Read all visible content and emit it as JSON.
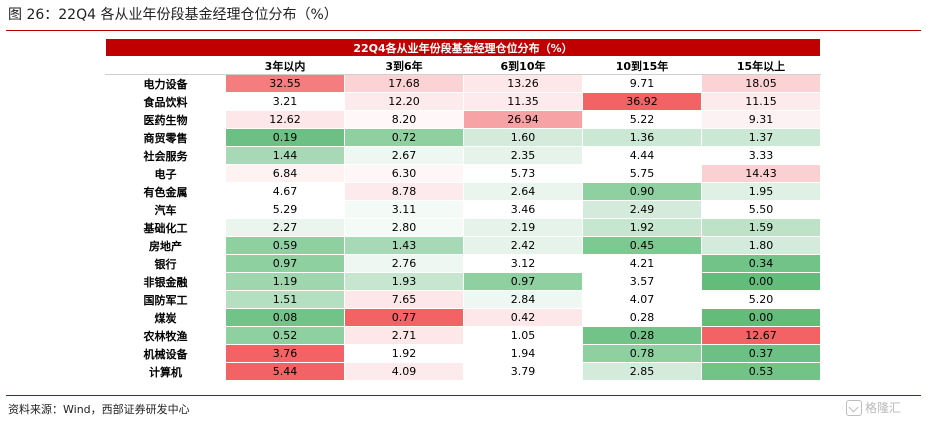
{
  "figure": {
    "title": "图 26：22Q4 各从业年份段基金经理仓位分布（%）",
    "source": "资料来源：Wind，西部证券研发中心",
    "watermark": "格隆汇"
  },
  "table": {
    "title": "22Q4各从业年份段基金经理仓位分布（%）",
    "columns": [
      "3年以内",
      "3到6年",
      "6到10年",
      "10到15年",
      "15年以上"
    ],
    "rows": [
      {
        "label": "电力设备",
        "values": [
          "32.55",
          "17.68",
          "13.26",
          "9.71",
          "18.05"
        ],
        "colors": [
          "#f57d7f",
          "#fbd3d5",
          "#fde7e9",
          "#ffffff",
          "#fbd3d5"
        ]
      },
      {
        "label": "食品饮料",
        "values": [
          "3.21",
          "12.20",
          "11.35",
          "36.92",
          "11.15"
        ],
        "colors": [
          "#ffffff",
          "#fdeaec",
          "#fdeaec",
          "#f36366",
          "#fdeaec"
        ]
      },
      {
        "label": "医药生物",
        "values": [
          "12.62",
          "8.20",
          "26.94",
          "5.22",
          "9.31"
        ],
        "colors": [
          "#fde7e9",
          "#fff7f8",
          "#f7a2a4",
          "#ffffff",
          "#fdf2f3"
        ]
      },
      {
        "label": "商贸零售",
        "values": [
          "0.19",
          "0.72",
          "1.60",
          "1.36",
          "1.37"
        ],
        "colors": [
          "#6cc083",
          "#8fd0a1",
          "#d4ebdb",
          "#cbe8d4",
          "#cbe8d4"
        ]
      },
      {
        "label": "社会服务",
        "values": [
          "1.44",
          "2.67",
          "2.35",
          "4.44",
          "3.33"
        ],
        "colors": [
          "#a8d9b6",
          "#eef7f1",
          "#e5f3ea",
          "#ffffff",
          "#ffffff"
        ]
      },
      {
        "label": "电子",
        "values": [
          "6.84",
          "6.30",
          "5.73",
          "5.75",
          "14.43"
        ],
        "colors": [
          "#fff2f3",
          "#fff6f7",
          "#ffffff",
          "#ffffff",
          "#fbd0d2"
        ]
      },
      {
        "label": "有色金属",
        "values": [
          "4.67",
          "8.78",
          "2.64",
          "0.90",
          "1.95"
        ],
        "colors": [
          "#ffffff",
          "#fdeaec",
          "#e9f5ed",
          "#8fd0a1",
          "#dff1e5"
        ]
      },
      {
        "label": "汽车",
        "values": [
          "5.29",
          "3.11",
          "3.46",
          "2.49",
          "5.50"
        ],
        "colors": [
          "#ffffff",
          "#f4fbf6",
          "#ffffff",
          "#d4ebdb",
          "#ffffff"
        ]
      },
      {
        "label": "基础化工",
        "values": [
          "2.27",
          "2.80",
          "2.19",
          "1.92",
          "1.59"
        ],
        "colors": [
          "#e9f5ed",
          "#f4fbf6",
          "#e5f3ea",
          "#c6e6cf",
          "#bde2c7"
        ]
      },
      {
        "label": "房地产",
        "values": [
          "0.59",
          "1.43",
          "2.42",
          "0.45",
          "1.80"
        ],
        "colors": [
          "#8fd0a1",
          "#a8d9b6",
          "#e5f3ea",
          "#7ec892",
          "#d4ebdb"
        ]
      },
      {
        "label": "银行",
        "values": [
          "0.97",
          "2.76",
          "3.12",
          "4.21",
          "0.34"
        ],
        "colors": [
          "#8fd0a1",
          "#eef7f1",
          "#ffffff",
          "#ffffff",
          "#72c388"
        ]
      },
      {
        "label": "非银金融",
        "values": [
          "1.19",
          "1.93",
          "0.97",
          "3.57",
          "0.00"
        ],
        "colors": [
          "#a0d6ae",
          "#c6e6cf",
          "#8fd0a1",
          "#ffffff",
          "#63bc7a"
        ]
      },
      {
        "label": "国防军工",
        "values": [
          "1.51",
          "7.65",
          "2.84",
          "4.07",
          "5.20"
        ],
        "colors": [
          "#b5dfc1",
          "#fde7e9",
          "#eef7f1",
          "#ffffff",
          "#ffffff"
        ]
      },
      {
        "label": "煤炭",
        "values": [
          "0.08",
          "0.77",
          "0.42",
          "0.28",
          "0.00"
        ],
        "colors": [
          "#72c388",
          "#f36366",
          "#fde7e9",
          "#ffffff",
          "#63bc7a"
        ]
      },
      {
        "label": "农林牧渔",
        "values": [
          "0.52",
          "2.71",
          "1.05",
          "0.28",
          "12.67"
        ],
        "colors": [
          "#8fd0a1",
          "#fde7e9",
          "#ffffff",
          "#72c388",
          "#f36366"
        ]
      },
      {
        "label": "机械设备",
        "values": [
          "3.76",
          "1.92",
          "1.94",
          "0.78",
          "0.37"
        ],
        "colors": [
          "#f36366",
          "#ffffff",
          "#ffffff",
          "#8fd0a1",
          "#6cc083"
        ]
      },
      {
        "label": "计算机",
        "values": [
          "5.44",
          "4.09",
          "3.79",
          "2.85",
          "0.53"
        ],
        "colors": [
          "#f36366",
          "#fdeaec",
          "#ffffff",
          "#d4ebdb",
          "#72c388"
        ]
      }
    ]
  }
}
